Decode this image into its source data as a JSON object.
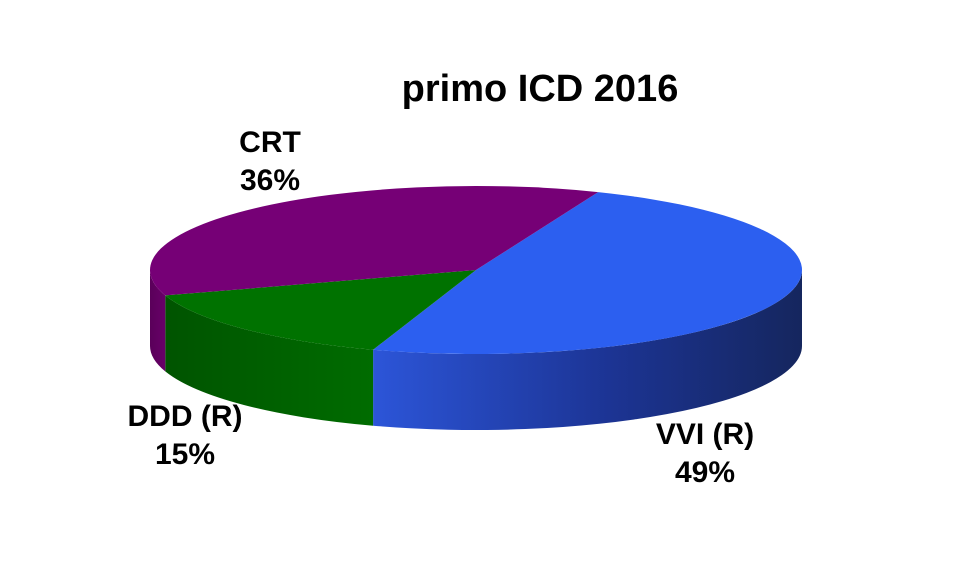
{
  "chart_data": {
    "type": "pie",
    "title": "primo ICD 2016",
    "slices": [
      {
        "label": "VVI (R)",
        "value": 49,
        "value_label": "49%",
        "color": "#2c5ff0",
        "side_color": "#1a2e78"
      },
      {
        "label": "DDD (R)",
        "value": 15,
        "value_label": "15%",
        "color": "#007200",
        "side_color": "#005c00"
      },
      {
        "label": "CRT",
        "value": 36,
        "value_label": "36%",
        "color": "#760076",
        "side_color": "#5a005a"
      }
    ],
    "legend": "none",
    "style": "3d"
  }
}
